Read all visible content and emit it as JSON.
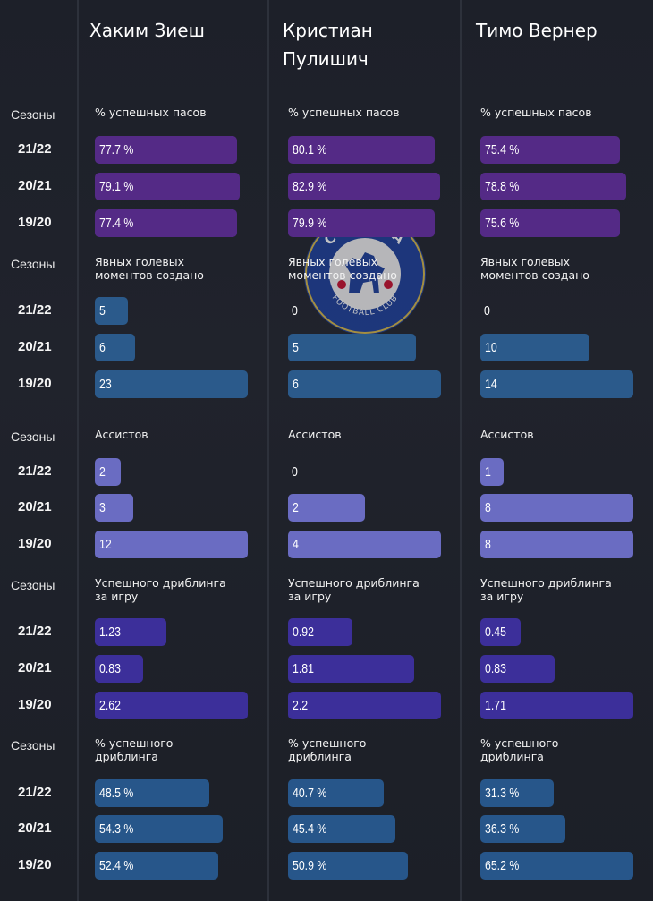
{
  "players": [
    "Хаким Зиеш",
    "Кристиан Пулишич",
    "Тимо Вернер"
  ],
  "seasons_header": "Сезоны",
  "seasons": [
    "21/22",
    "20/21",
    "19/20"
  ],
  "logo": {
    "top_text": "CHELSEA",
    "bottom_text": "FOOTBALL CLUB"
  },
  "colors": {
    "pass_pct": "#542a86",
    "chances": "#2b5a8b",
    "assists": "#6a6cc2",
    "dribbles": "#3c2f9a",
    "dribble_pct": "#27568a"
  },
  "chart_data": [
    {
      "type": "bar",
      "metric": "% успешных пасов",
      "title_lines": [
        "% успешных пасов"
      ],
      "categories": [
        "21/22",
        "20/21",
        "19/20"
      ],
      "series": [
        {
          "name": "Хаким Зиеш",
          "values": [
            77.7,
            79.1,
            77.4
          ],
          "labels": [
            "77.7 %",
            "79.1 %",
            "77.4 %"
          ]
        },
        {
          "name": "Кристиан Пулишич",
          "values": [
            80.1,
            82.9,
            79.9
          ],
          "labels": [
            "80.1 %",
            "82.9 %",
            "79.9 %"
          ]
        },
        {
          "name": "Тимо Вернер",
          "values": [
            75.4,
            78.8,
            75.6
          ],
          "labels": [
            "75.4 %",
            "78.8 %",
            "75.6 %"
          ]
        }
      ]
    },
    {
      "type": "bar",
      "metric": "Явных голевых моментов создано",
      "title_lines": [
        "Явных голевых",
        "моментов создано"
      ],
      "categories": [
        "21/22",
        "20/21",
        "19/20"
      ],
      "series": [
        {
          "name": "Хаким Зиеш",
          "values": [
            5,
            6,
            23
          ],
          "labels": [
            "5",
            "6",
            "23"
          ]
        },
        {
          "name": "Кристиан Пулишич",
          "values": [
            0,
            5,
            6
          ],
          "labels": [
            "0",
            "5",
            "6"
          ]
        },
        {
          "name": "Тимо Вернер",
          "values": [
            0,
            10,
            14
          ],
          "labels": [
            "0",
            "10",
            "14"
          ]
        }
      ]
    },
    {
      "type": "bar",
      "metric": "Ассистов",
      "title_lines": [
        "Ассистов"
      ],
      "categories": [
        "21/22",
        "20/21",
        "19/20"
      ],
      "series": [
        {
          "name": "Хаким Зиеш",
          "values": [
            2,
            3,
            12
          ],
          "labels": [
            "2",
            "3",
            "12"
          ]
        },
        {
          "name": "Кристиан Пулишич",
          "values": [
            0,
            2,
            4
          ],
          "labels": [
            "0",
            "2",
            "4"
          ]
        },
        {
          "name": "Тимо Вернер",
          "values": [
            1,
            8,
            8
          ],
          "labels": [
            "1",
            "8",
            "8"
          ]
        }
      ]
    },
    {
      "type": "bar",
      "metric": "Успешного дриблинга за игру",
      "title_lines": [
        "Успешного дриблинга",
        "за игру"
      ],
      "categories": [
        "21/22",
        "20/21",
        "19/20"
      ],
      "series": [
        {
          "name": "Хаким Зиеш",
          "values": [
            1.23,
            0.83,
            2.62
          ],
          "labels": [
            "1.23",
            "0.83",
            "2.62"
          ]
        },
        {
          "name": "Кристиан Пулишич",
          "values": [
            0.92,
            1.81,
            2.2
          ],
          "labels": [
            "0.92",
            "1.81",
            "2.2"
          ]
        },
        {
          "name": "Тимо Вернер",
          "values": [
            0.45,
            0.83,
            1.71
          ],
          "labels": [
            "0.45",
            "0.83",
            "1.71"
          ]
        }
      ]
    },
    {
      "type": "bar",
      "metric": "% успешного дриблинга",
      "title_lines": [
        "% успешного",
        "дриблинга"
      ],
      "categories": [
        "21/22",
        "20/21",
        "19/20"
      ],
      "series": [
        {
          "name": "Хаким Зиеш",
          "values": [
            48.5,
            54.3,
            52.4
          ],
          "labels": [
            "48.5 %",
            "54.3 %",
            "52.4 %"
          ]
        },
        {
          "name": "Кристиан Пулишич",
          "values": [
            40.7,
            45.4,
            50.9
          ],
          "labels": [
            "40.7 %",
            "45.4 %",
            "50.9 %"
          ]
        },
        {
          "name": "Тимо Вернер",
          "values": [
            31.3,
            36.3,
            65.2
          ],
          "labels": [
            "31.3 %",
            "36.3 %",
            "65.2 %"
          ]
        }
      ]
    }
  ]
}
